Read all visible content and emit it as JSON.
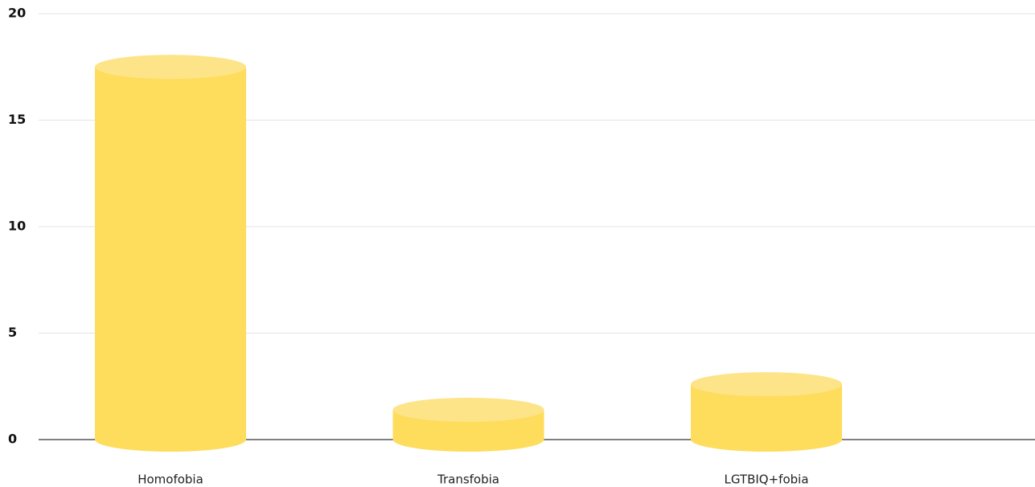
{
  "chart_data": {
    "type": "bar",
    "categories": [
      "Homofobia",
      "Transfobia",
      "LGTBIQ+fobia"
    ],
    "values": [
      17.5,
      1.4,
      2.6
    ],
    "color": "#fedc5c",
    "top_color": "#fde488",
    "ylim": [
      0,
      20
    ],
    "yticks": [
      0,
      5,
      10,
      15,
      20
    ],
    "grid": true
  }
}
